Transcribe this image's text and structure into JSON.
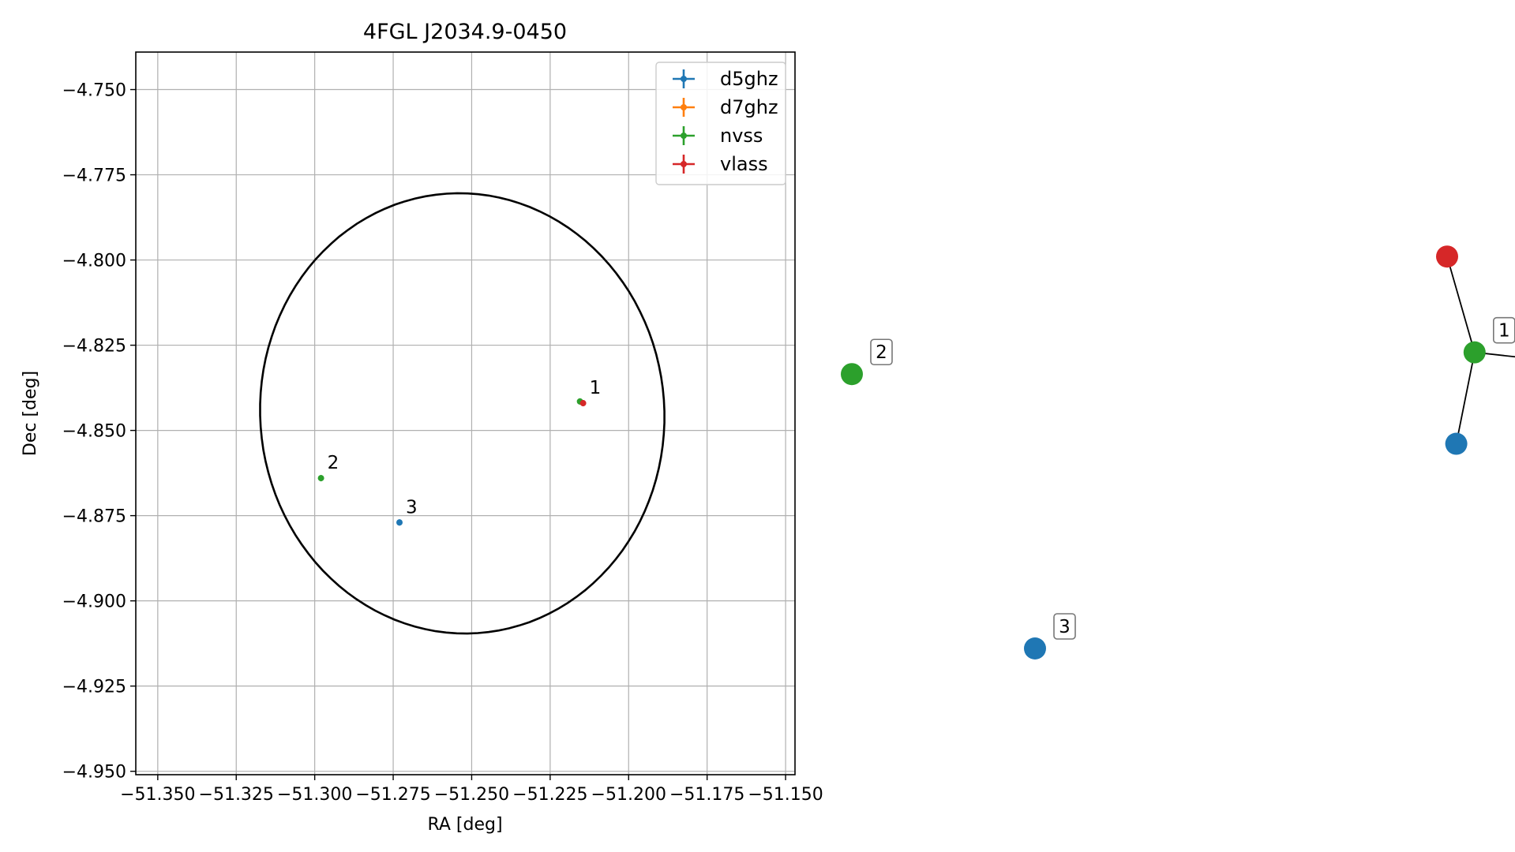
{
  "chart_data": [
    {
      "type": "scatter",
      "title": "4FGL J2034.9-0450",
      "xlabel": "RA [deg]",
      "ylabel": "Dec [deg]",
      "xlim": [
        -51.357,
        -51.147
      ],
      "ylim": [
        -4.951,
        -4.739
      ],
      "grid": true,
      "legend_position": "top-right",
      "x_ticks": [
        -51.35,
        -51.325,
        -51.3,
        -51.275,
        -51.25,
        -51.225,
        -51.2,
        -51.175,
        -51.15
      ],
      "x_tick_labels": [
        "−51.350",
        "−51.325",
        "−51.300",
        "−51.275",
        "−51.250",
        "−51.225",
        "−51.200",
        "−51.175",
        "−51.150"
      ],
      "y_ticks": [
        -4.75,
        -4.775,
        -4.8,
        -4.825,
        -4.85,
        -4.875,
        -4.9,
        -4.925,
        -4.95
      ],
      "y_tick_labels": [
        "−4.750",
        "−4.775",
        "−4.800",
        "−4.825",
        "−4.850",
        "−4.875",
        "−4.900",
        "−4.925",
        "−4.950"
      ],
      "ellipse": {
        "center": [
          -51.253,
          -4.845
        ],
        "semi_major": 0.064,
        "semi_minor": 0.065,
        "angle_deg": 40
      },
      "series": [
        {
          "name": "d5ghz",
          "color": "#1f77b4",
          "points": [
            {
              "x": -51.273,
              "y": -4.877
            }
          ]
        },
        {
          "name": "d7ghz",
          "color": "#ff7f0e",
          "points": []
        },
        {
          "name": "nvss",
          "color": "#2ca02c",
          "points": [
            {
              "x": -51.2155,
              "y": -4.8415
            },
            {
              "x": -51.298,
              "y": -4.864
            }
          ]
        },
        {
          "name": "vlass",
          "color": "#d62728",
          "points": [
            {
              "x": -51.2145,
              "y": -4.842
            }
          ]
        }
      ],
      "annotations": [
        {
          "text": "1",
          "x": -51.2145,
          "y": -4.842
        },
        {
          "text": "2",
          "x": -51.298,
          "y": -4.864
        },
        {
          "text": "3",
          "x": -51.273,
          "y": -4.877
        }
      ]
    },
    {
      "type": "graph",
      "nodes": [
        {
          "id": "vlass-1",
          "color": "#d62728",
          "x": 0.5,
          "y": 0.9
        },
        {
          "id": "nvss-1",
          "color": "#2ca02c",
          "x": 0.53,
          "y": 0.68,
          "label": "1"
        },
        {
          "id": "d7ghz-1",
          "color": "#ff7f0e",
          "x": 0.66,
          "y": 0.65
        },
        {
          "id": "d5ghz-1",
          "color": "#1f77b4",
          "x": 0.51,
          "y": 0.47
        },
        {
          "id": "nvss-2",
          "color": "#2ca02c",
          "x": -0.15,
          "y": 0.63,
          "label": "2"
        },
        {
          "id": "d5ghz-3",
          "color": "#1f77b4",
          "x": 0.05,
          "y": 0.0,
          "label": "3"
        }
      ],
      "edges": [
        [
          "nvss-1",
          "vlass-1"
        ],
        [
          "nvss-1",
          "d7ghz-1"
        ],
        [
          "nvss-1",
          "d5ghz-1"
        ]
      ]
    }
  ]
}
